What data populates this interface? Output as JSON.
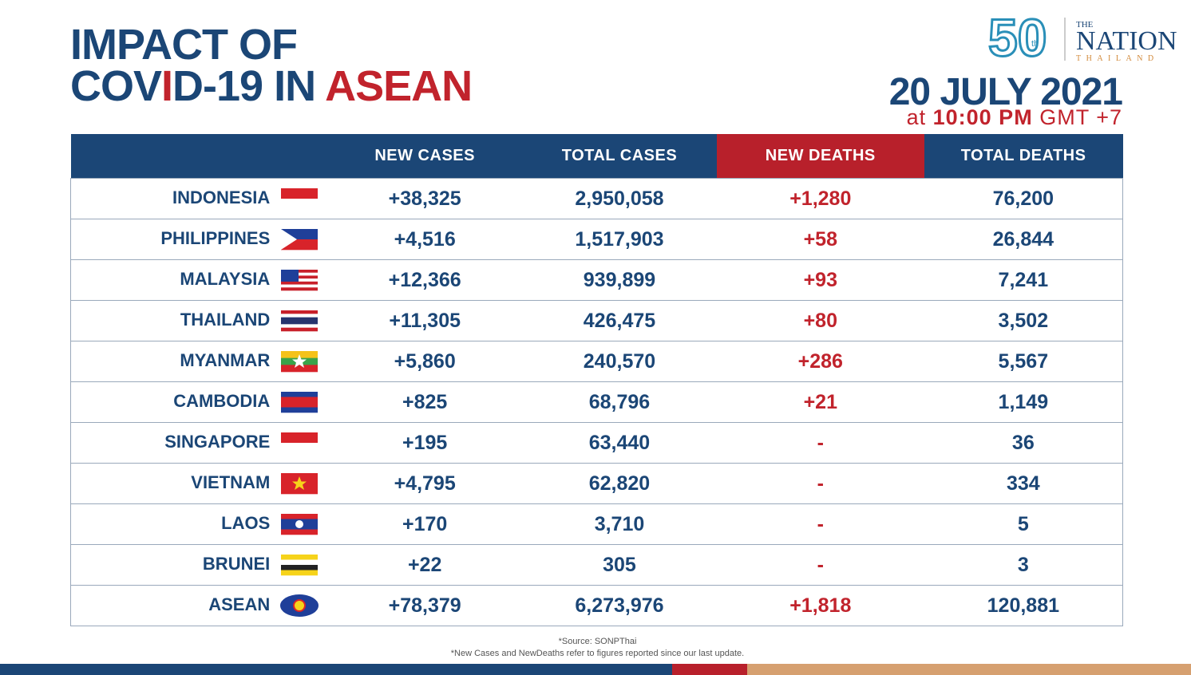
{
  "header": {
    "title": {
      "line1": "IMPACT OF",
      "line2": {
        "a": "COV",
        "b": "I",
        "c": "D-19 IN ",
        "d": "ASEAN"
      }
    },
    "date": "20 JULY 2021",
    "time": {
      "at": "at",
      "clock": "10:00 PM",
      "zone": "GMT +7"
    },
    "logo": {
      "number": "50",
      "suffix": "th",
      "the": "THE",
      "name": "NATION",
      "country": "THAILAND"
    }
  },
  "table": {
    "headers": [
      "NEW CASES",
      "TOTAL CASES",
      "NEW DEATHS",
      "TOTAL DEATHS"
    ],
    "rows": [
      [
        "INDONESIA",
        "+38,325",
        "2,950,058",
        "+1,280",
        "76,200"
      ],
      [
        "PHILIPPINES",
        "+4,516",
        "1,517,903",
        "+58",
        "26,844"
      ],
      [
        "MALAYSIA",
        "+12,366",
        "939,899",
        "+93",
        "7,241"
      ],
      [
        "THAILAND",
        "+11,305",
        "426,475",
        "+80",
        "3,502"
      ],
      [
        "MYANMAR",
        "+5,860",
        "240,570",
        "+286",
        "5,567"
      ],
      [
        "CAMBODIA",
        "+825",
        "68,796",
        "+21",
        "1,149"
      ],
      [
        "SINGAPORE",
        "+195",
        "63,440",
        "-",
        "36"
      ],
      [
        "VIETNAM",
        "+4,795",
        "62,820",
        "-",
        "334"
      ],
      [
        "LAOS",
        "+170",
        "3,710",
        "-",
        "5"
      ],
      [
        "BRUNEI",
        "+22",
        "305",
        "-",
        "3"
      ],
      [
        "ASEAN",
        "+78,379",
        "6,273,976",
        "+1,818",
        "120,881"
      ]
    ]
  },
  "notes": [
    "*Source: SONPThai",
    "*New Cases and NewDeaths refer to figures reported since our last update."
  ]
}
